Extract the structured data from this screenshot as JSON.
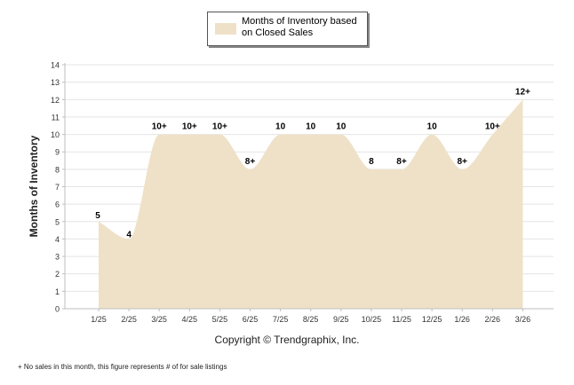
{
  "legend": {
    "label": "Months of Inventory based on Closed Sales",
    "color": "#efe1c8"
  },
  "copyright": "Copyright © Trendgraphix, Inc.",
  "footnote": "+  No sales in this month, this figure represents # of for sale listings",
  "chart_data": {
    "type": "area",
    "title": "",
    "xlabel": "",
    "ylabel": "Months of Inventory",
    "ylim": [
      0,
      14
    ],
    "yticks": [
      0,
      1,
      2,
      3,
      4,
      5,
      6,
      7,
      8,
      9,
      10,
      11,
      12,
      13,
      14
    ],
    "grid": true,
    "legend_position": "top-center",
    "categories": [
      "1/25",
      "2/25",
      "3/25",
      "4/25",
      "5/25",
      "6/25",
      "7/25",
      "8/25",
      "9/25",
      "10/25",
      "11/25",
      "12/25",
      "1/26",
      "2/26",
      "3/26"
    ],
    "series": [
      {
        "name": "Months of Inventory based on Closed Sales",
        "color": "#efe1c8",
        "values": [
          5,
          4,
          10,
          10,
          10,
          8,
          10,
          10,
          10,
          8,
          8,
          10,
          8,
          10,
          12
        ],
        "labels": [
          "5",
          "4",
          "10+",
          "10+",
          "10+",
          "8+",
          "10",
          "10",
          "10",
          "8",
          "8+",
          "10",
          "8+",
          "10+",
          "12+"
        ]
      }
    ]
  }
}
